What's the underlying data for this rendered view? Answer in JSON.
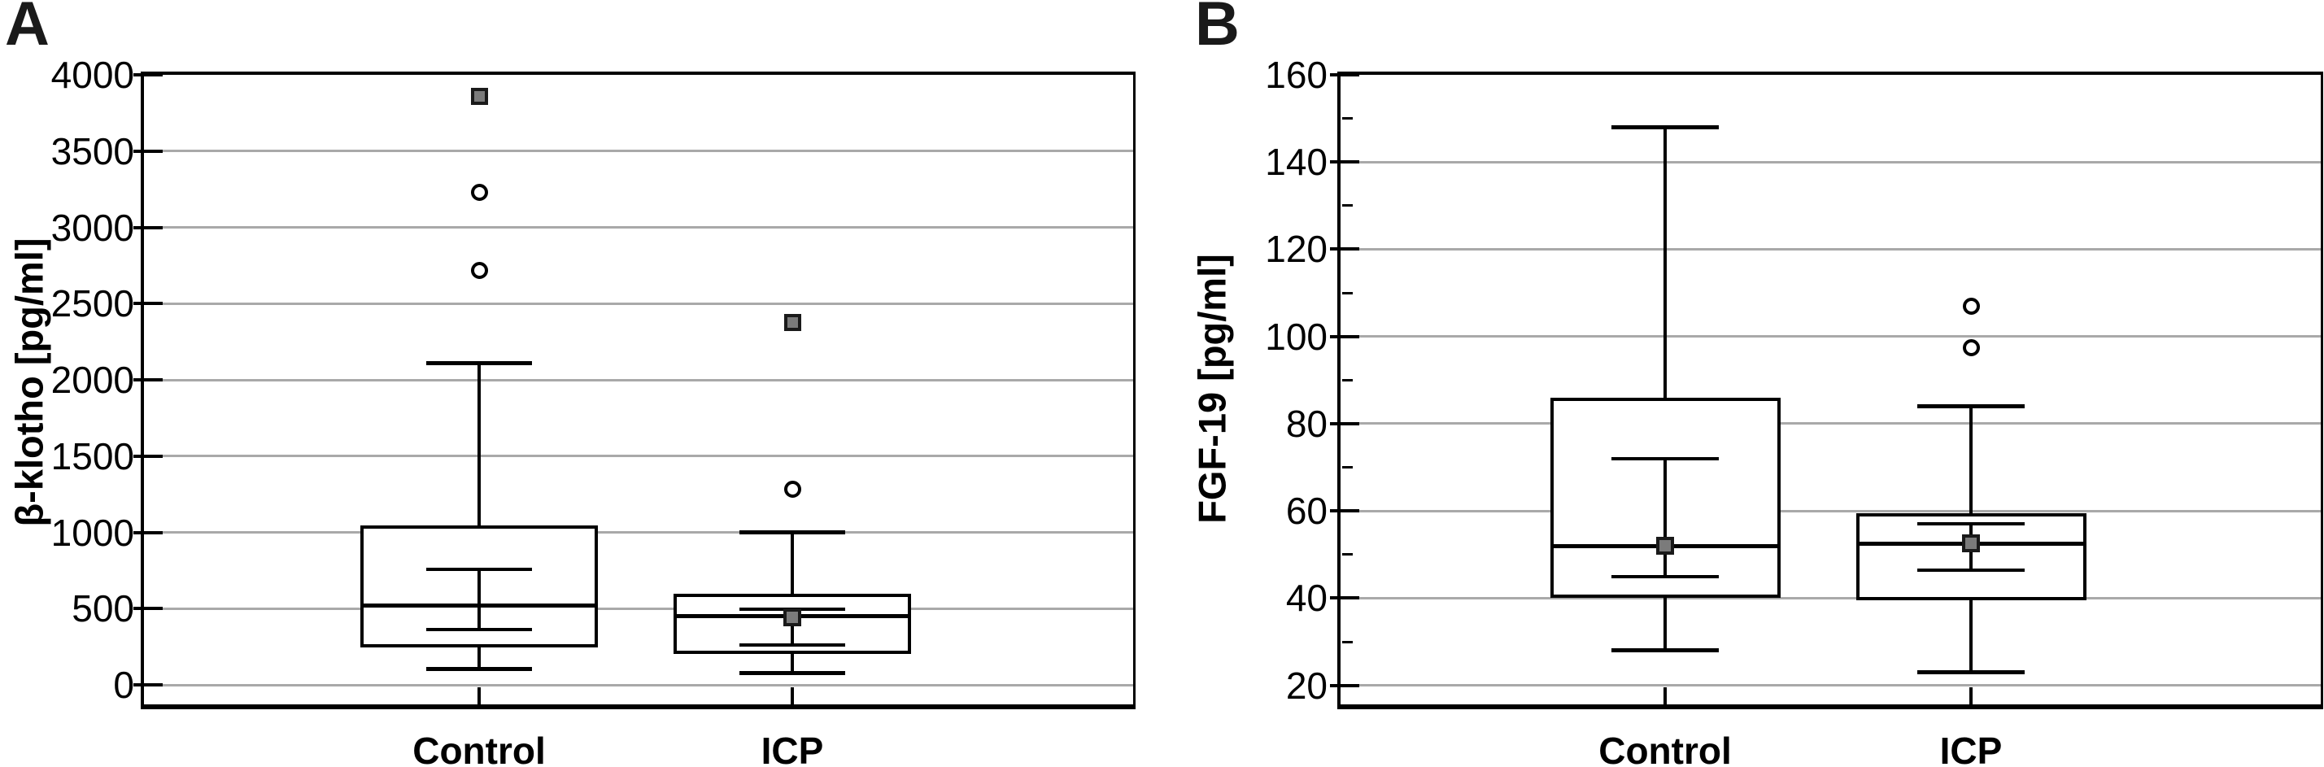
{
  "figure_type": "two-panel box-and-whisker figure",
  "colors": {
    "background": "#ffffff",
    "box_line": "#000000",
    "gridline": "#a9a9a9",
    "marker_fill_gray": "#7b7b7b",
    "marker_border": "#1a1a1a",
    "outlier_stroke": "#000000"
  },
  "chart_data": [
    {
      "type": "box",
      "panel_label": "A",
      "ylabel": "β-klotho [pg/ml]",
      "categories": [
        "Control",
        "ICP"
      ],
      "ylim": [
        0,
        4000
      ],
      "yticks": [
        0,
        500,
        1000,
        1500,
        2000,
        2500,
        3000,
        3500,
        4000
      ],
      "minor_yticks": [],
      "grid": true,
      "legend_position": "none",
      "series": [
        {
          "name": "Control",
          "whisker_low": 105,
          "q1": 245,
          "median": 520,
          "q3": 1045,
          "whisker_high": 2110,
          "inner_low": 365,
          "inner_high": 755,
          "mean_marker": null,
          "outliers": [
            2715,
            3230
          ],
          "extremes": [
            3860
          ]
        },
        {
          "name": "ICP",
          "whisker_low": 75,
          "q1": 205,
          "median": 450,
          "q3": 595,
          "whisker_high": 1000,
          "inner_low": 262,
          "inner_high": 495,
          "mean_marker": 445,
          "outliers": [
            1285
          ],
          "extremes": [
            2375
          ]
        }
      ]
    },
    {
      "type": "box",
      "panel_label": "B",
      "ylabel": "FGF-19 [pg/ml]",
      "categories": [
        "Control",
        "ICP"
      ],
      "ylim": [
        20,
        160
      ],
      "yticks": [
        20,
        40,
        60,
        80,
        100,
        120,
        140,
        160
      ],
      "minor_yticks": [
        30,
        50,
        70,
        90,
        110,
        130,
        150
      ],
      "grid": true,
      "legend_position": "none",
      "series": [
        {
          "name": "Control",
          "whisker_low": 28,
          "q1": 40,
          "median": 52,
          "q3": 86,
          "whisker_high": 148,
          "inner_low": 45,
          "inner_high": 72,
          "mean_marker": 52,
          "outliers": [],
          "extremes": []
        },
        {
          "name": "ICP",
          "whisker_low": 23,
          "q1": 39.5,
          "median": 52.5,
          "q3": 59.5,
          "whisker_high": 84,
          "inner_low": 46.5,
          "inner_high": 57,
          "mean_marker": 52.5,
          "outliers": [
            97.5,
            107
          ],
          "extremes": []
        }
      ]
    }
  ]
}
